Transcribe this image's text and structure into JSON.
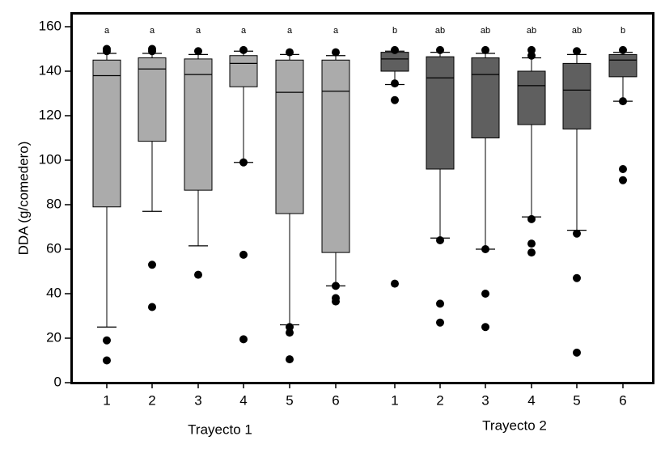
{
  "chart_data": {
    "type": "boxplot",
    "ylabel": "DDA (g/comedero)",
    "ylim": [
      0,
      160
    ],
    "yticks": [
      0,
      20,
      40,
      60,
      80,
      100,
      120,
      140,
      160
    ],
    "grid": false,
    "colors": {
      "group1": "#ababab",
      "group2": "#5f5f5f"
    },
    "groups": [
      {
        "name": "Trayecto 1",
        "color": "#ababab",
        "boxes": [
          {
            "label": "1",
            "q1": 79,
            "median": 138,
            "q3": 145,
            "whisker_low": 25,
            "whisker_high": 148,
            "outliers": [
              10,
              19,
              149,
              150
            ],
            "letter": "a"
          },
          {
            "label": "2",
            "q1": 108.5,
            "median": 141,
            "q3": 146,
            "whisker_low": 77,
            "whisker_high": 148,
            "outliers": [
              34,
              53,
              149,
              150
            ],
            "letter": "a"
          },
          {
            "label": "3",
            "q1": 86.5,
            "median": 138.5,
            "q3": 145.5,
            "whisker_low": 61.5,
            "whisker_high": 147.5,
            "outliers": [
              48.5,
              149
            ],
            "letter": "a"
          },
          {
            "label": "4",
            "q1": 133,
            "median": 143.5,
            "q3": 147,
            "whisker_low": 99,
            "whisker_high": 149,
            "outliers": [
              19.5,
              57.5,
              99,
              149.5
            ],
            "letter": "a"
          },
          {
            "label": "5",
            "q1": 76,
            "median": 130.5,
            "q3": 145,
            "whisker_low": 26,
            "whisker_high": 147.5,
            "outliers": [
              10.5,
              22.5,
              25,
              148.5
            ],
            "letter": "a"
          },
          {
            "label": "6",
            "q1": 58.5,
            "median": 131,
            "q3": 145,
            "whisker_low": 43.5,
            "whisker_high": 147,
            "outliers": [
              36.5,
              38,
              43.5,
              148.5
            ],
            "letter": "a"
          }
        ]
      },
      {
        "name": "Trayecto 2",
        "color": "#5f5f5f",
        "boxes": [
          {
            "label": "1",
            "q1": 140,
            "median": 145.5,
            "q3": 148.5,
            "whisker_low": 134,
            "whisker_high": 149,
            "outliers": [
              44.5,
              127,
              134.5,
              149.5
            ],
            "letter": "b"
          },
          {
            "label": "2",
            "q1": 96,
            "median": 137,
            "q3": 146.5,
            "whisker_low": 65,
            "whisker_high": 148.5,
            "outliers": [
              27,
              35.5,
              64,
              149.5
            ],
            "letter": "ab"
          },
          {
            "label": "3",
            "q1": 110,
            "median": 138.5,
            "q3": 146,
            "whisker_low": 60,
            "whisker_high": 148,
            "outliers": [
              25,
              40,
              60,
              149.5
            ],
            "letter": "ab"
          },
          {
            "label": "4",
            "q1": 116,
            "median": 133.5,
            "q3": 140,
            "whisker_low": 74.5,
            "whisker_high": 146,
            "outliers": [
              58.5,
              62.5,
              73.5,
              147,
              149.5
            ],
            "letter": "ab"
          },
          {
            "label": "5",
            "q1": 114,
            "median": 131.5,
            "q3": 143.5,
            "whisker_low": 68.5,
            "whisker_high": 147.5,
            "outliers": [
              13.5,
              47,
              67,
              149
            ],
            "letter": "ab"
          },
          {
            "label": "6",
            "q1": 137.5,
            "median": 145,
            "q3": 147.5,
            "whisker_low": 126.5,
            "whisker_high": 148.5,
            "outliers": [
              91,
              96,
              126.5,
              149.5
            ],
            "letter": "b"
          }
        ]
      }
    ]
  }
}
